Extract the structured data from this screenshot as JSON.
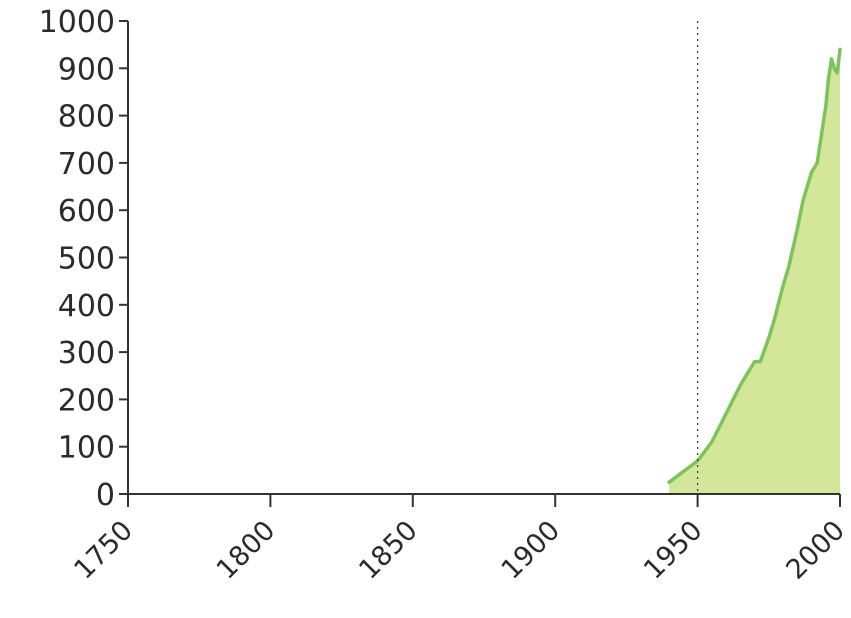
{
  "chart_data": {
    "type": "area",
    "title": "",
    "xlabel": "",
    "ylabel": "",
    "xlim": [
      1750,
      2000
    ],
    "ylim": [
      0,
      1000
    ],
    "x_ticks": [
      1750,
      1800,
      1850,
      1900,
      1950,
      2000
    ],
    "x_tick_labels": [
      "1750",
      "1800",
      "1850",
      "1900",
      "1950",
      "2000"
    ],
    "y_ticks": [
      0,
      100,
      200,
      300,
      400,
      500,
      600,
      700,
      800,
      900,
      1000
    ],
    "y_tick_labels": [
      "0",
      "100",
      "200",
      "300",
      "400",
      "500",
      "600",
      "700",
      "800",
      "900",
      "1000"
    ],
    "reference_line": {
      "x": 1950,
      "style": "dotted"
    },
    "grid": false,
    "legend": "none",
    "colors": {
      "line": "#7dc35b",
      "fill": "#d4e69a",
      "axis": "#333333",
      "reference": "#333333"
    },
    "series": [
      {
        "x": [
          1940,
          1950,
          1955,
          1960,
          1965,
          1970,
          1972,
          1975,
          1977,
          1980,
          1982,
          1985,
          1987,
          1990,
          1992,
          1995,
          1996,
          1997,
          1998,
          1999,
          2000
        ],
        "values": [
          25,
          70,
          110,
          170,
          230,
          280,
          280,
          330,
          370,
          440,
          480,
          560,
          620,
          680,
          700,
          820,
          880,
          920,
          900,
          890,
          940
        ]
      }
    ]
  }
}
